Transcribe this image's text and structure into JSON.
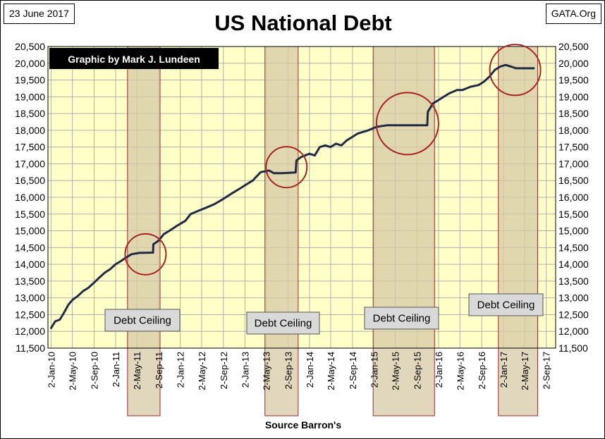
{
  "header": {
    "date": "23 June 2017",
    "title": "US National Debt",
    "source": "GATA.Org"
  },
  "chart_data": {
    "type": "line",
    "title": "US National Debt",
    "credit": "Graphic by Mark J. Lundeen",
    "x_caption": "Source Barron's",
    "xlabel": "",
    "ylabel": "",
    "ylim": [
      11500,
      20500
    ],
    "y_ticks": [
      11500,
      12000,
      12500,
      13000,
      13500,
      14000,
      14500,
      15000,
      15500,
      16000,
      16500,
      17000,
      17500,
      18000,
      18500,
      19000,
      19500,
      20000,
      20500
    ],
    "y_tick_labels": [
      "11,500",
      "12,000",
      "12,500",
      "13,000",
      "13,500",
      "14,000",
      "14,500",
      "15,000",
      "15,500",
      "16,000",
      "16,500",
      "17,000",
      "17,500",
      "18,000",
      "18,500",
      "19,000",
      "19,500",
      "20,000",
      "20,500"
    ],
    "x_range": [
      "2009-12-15",
      "2017-10-25"
    ],
    "x_ticks": [
      {
        "date": "2010-01-02",
        "label": "2-Jan-10"
      },
      {
        "date": "2010-05-02",
        "label": "2-May-10"
      },
      {
        "date": "2010-09-02",
        "label": "2-Sep-10"
      },
      {
        "date": "2011-01-02",
        "label": "2-Jan-11"
      },
      {
        "date": "2011-05-02",
        "label": "2-May-11"
      },
      {
        "date": "2011-09-02",
        "label": "2-Sep-11"
      },
      {
        "date": "2012-01-02",
        "label": "2-Jan-12"
      },
      {
        "date": "2012-05-02",
        "label": "2-May-12"
      },
      {
        "date": "2012-09-02",
        "label": "2-Sep-12"
      },
      {
        "date": "2013-01-02",
        "label": "2-Jan-13"
      },
      {
        "date": "2013-05-02",
        "label": "2-May-13"
      },
      {
        "date": "2013-09-02",
        "label": "2-Sep-13"
      },
      {
        "date": "2014-01-02",
        "label": "2-Jan-14"
      },
      {
        "date": "2014-05-02",
        "label": "2-May-14"
      },
      {
        "date": "2014-09-02",
        "label": "2-Sep-14"
      },
      {
        "date": "2015-01-02",
        "label": "2-Jan-15"
      },
      {
        "date": "2015-05-02",
        "label": "2-May-15"
      },
      {
        "date": "2015-09-02",
        "label": "2-Sep-15"
      },
      {
        "date": "2016-01-02",
        "label": "2-Jan-16"
      },
      {
        "date": "2016-05-02",
        "label": "2-May-16"
      },
      {
        "date": "2016-09-02",
        "label": "2-Sep-16"
      },
      {
        "date": "2017-01-02",
        "label": "2-Jan-17"
      },
      {
        "date": "2017-05-02",
        "label": "2-May-17"
      },
      {
        "date": "2017-09-02",
        "label": "2-Sep-17"
      }
    ],
    "series": [
      {
        "name": "",
        "color": "#1f2a44",
        "points": [
          [
            "2010-01-02",
            12100
          ],
          [
            "2010-01-25",
            12300
          ],
          [
            "2010-02-20",
            12350
          ],
          [
            "2010-03-15",
            12550
          ],
          [
            "2010-04-10",
            12800
          ],
          [
            "2010-05-05",
            12950
          ],
          [
            "2010-06-01",
            13050
          ],
          [
            "2010-07-01",
            13200
          ],
          [
            "2010-08-01",
            13300
          ],
          [
            "2010-09-01",
            13450
          ],
          [
            "2010-10-01",
            13600
          ],
          [
            "2010-11-01",
            13750
          ],
          [
            "2010-12-01",
            13850
          ],
          [
            "2011-01-01",
            14000
          ],
          [
            "2011-02-01",
            14100
          ],
          [
            "2011-03-01",
            14200
          ],
          [
            "2011-04-01",
            14300
          ],
          [
            "2011-05-16",
            14340
          ],
          [
            "2011-06-15",
            14345
          ],
          [
            "2011-08-01",
            14350
          ],
          [
            "2011-08-03",
            14600
          ],
          [
            "2011-09-01",
            14700
          ],
          [
            "2011-10-01",
            14900
          ],
          [
            "2011-11-01",
            15000
          ],
          [
            "2011-12-15",
            15150
          ],
          [
            "2012-01-31",
            15300
          ],
          [
            "2012-03-01",
            15500
          ],
          [
            "2012-04-15",
            15600
          ],
          [
            "2012-06-01",
            15700
          ],
          [
            "2012-07-15",
            15800
          ],
          [
            "2012-09-01",
            15950
          ],
          [
            "2012-10-15",
            16100
          ],
          [
            "2012-12-01",
            16250
          ],
          [
            "2013-01-15",
            16400
          ],
          [
            "2013-02-15",
            16500
          ],
          [
            "2013-04-01",
            16750
          ],
          [
            "2013-05-19",
            16800
          ],
          [
            "2013-06-15",
            16720
          ],
          [
            "2013-08-01",
            16720
          ],
          [
            "2013-10-16",
            16740
          ],
          [
            "2013-10-20",
            17100
          ],
          [
            "2013-11-15",
            17200
          ],
          [
            "2014-01-01",
            17300
          ],
          [
            "2014-02-01",
            17250
          ],
          [
            "2014-03-01",
            17500
          ],
          [
            "2014-04-01",
            17550
          ],
          [
            "2014-05-01",
            17500
          ],
          [
            "2014-06-01",
            17600
          ],
          [
            "2014-07-01",
            17550
          ],
          [
            "2014-08-01",
            17700
          ],
          [
            "2014-09-01",
            17800
          ],
          [
            "2014-10-01",
            17900
          ],
          [
            "2014-12-01",
            18000
          ],
          [
            "2015-01-15",
            18100
          ],
          [
            "2015-03-15",
            18150
          ],
          [
            "2015-06-01",
            18150
          ],
          [
            "2015-09-01",
            18150
          ],
          [
            "2015-10-30",
            18150
          ],
          [
            "2015-11-02",
            18550
          ],
          [
            "2015-12-01",
            18800
          ],
          [
            "2016-01-01",
            18900
          ],
          [
            "2016-03-01",
            19100
          ],
          [
            "2016-04-15",
            19200
          ],
          [
            "2016-05-15",
            19200
          ],
          [
            "2016-07-01",
            19300
          ],
          [
            "2016-08-15",
            19350
          ],
          [
            "2016-09-15",
            19450
          ],
          [
            "2016-10-15",
            19600
          ],
          [
            "2016-11-15",
            19800
          ],
          [
            "2016-12-15",
            19900
          ],
          [
            "2017-01-15",
            19950
          ],
          [
            "2017-02-15",
            19900
          ],
          [
            "2017-03-15",
            19850
          ],
          [
            "2017-04-15",
            19850
          ],
          [
            "2017-06-23",
            19850
          ]
        ]
      }
    ],
    "debt_ceiling_periods": [
      {
        "label": "Debt Ceiling",
        "start": "2011-03-10",
        "end": "2011-09-10"
      },
      {
        "label": "Debt Ceiling",
        "start": "2013-04-25",
        "end": "2013-10-30"
      },
      {
        "label": "Debt Ceiling",
        "start": "2014-12-28",
        "end": "2015-12-10"
      },
      {
        "label": "Debt Ceiling",
        "start": "2016-12-05",
        "end": "2017-07-15"
      }
    ],
    "highlights": [
      {
        "cx": "2011-06-20",
        "cy": 14300
      },
      {
        "cx": "2013-08-25",
        "cy": 16900
      },
      {
        "cx": "2015-07-10",
        "cy": 18200
      },
      {
        "cx": "2017-03-10",
        "cy": 19800
      }
    ],
    "colors": {
      "plot_background": "#ffffc8",
      "grid": "#b0b0b0",
      "band_fill": "#d7c9a6",
      "band_border": "#9b2a2a",
      "circle": "#a82424",
      "line": "#1f2a44",
      "credit_box": "#000000",
      "credit_text": "#ffffff",
      "label_box": "#d9d9d9"
    }
  }
}
